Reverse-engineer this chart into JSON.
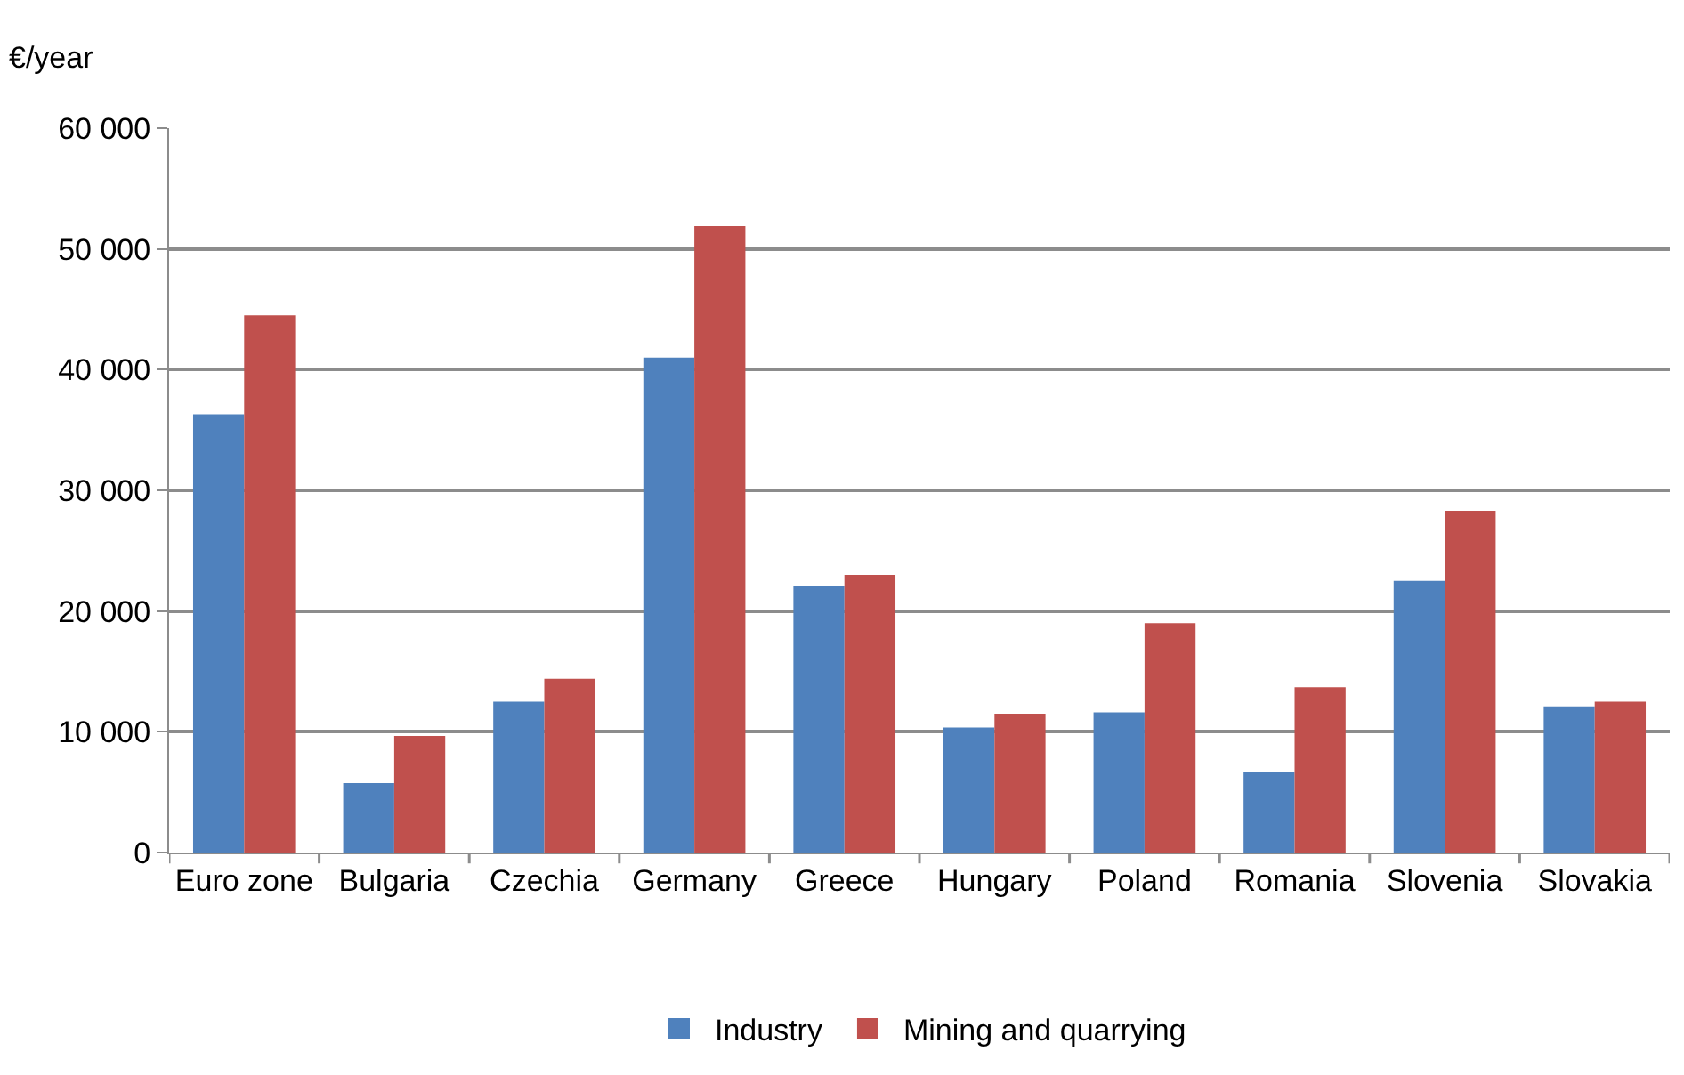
{
  "chart_data": {
    "type": "bar",
    "ylabel": "€/year",
    "categories": [
      "Euro zone",
      "Bulgaria",
      "Czechia",
      "Germany",
      "Greece",
      "Hungary",
      "Poland",
      "Romania",
      "Slovenia",
      "Slovakia"
    ],
    "series": [
      {
        "name": "Industry",
        "color": "#4f81bd",
        "values": [
          36300,
          5750,
          12500,
          41000,
          22100,
          10350,
          11600,
          6650,
          22500,
          12100
        ]
      },
      {
        "name": "Mining and quarrying",
        "color": "#c0504d",
        "values": [
          44500,
          9650,
          14400,
          51900,
          23000,
          11500,
          19000,
          13700,
          28300,
          12500
        ]
      }
    ],
    "ylim": [
      0,
      60000
    ],
    "yticks": [
      {
        "value": 0,
        "label": "0"
      },
      {
        "value": 10000,
        "label": "10 000"
      },
      {
        "value": 20000,
        "label": "20 000"
      },
      {
        "value": 30000,
        "label": "30 000"
      },
      {
        "value": 40000,
        "label": "40 000"
      },
      {
        "value": 50000,
        "label": "50 000"
      },
      {
        "value": 60000,
        "label": "60 000"
      }
    ],
    "grid": "y",
    "legend": "bottom"
  }
}
